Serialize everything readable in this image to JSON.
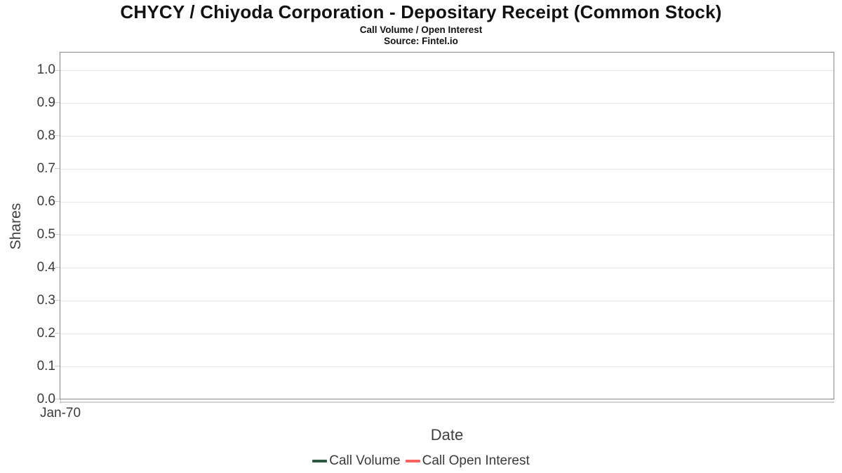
{
  "chart_data": {
    "type": "line",
    "title": "CHYCY / Chiyoda Corporation - Depositary Receipt (Common Stock)",
    "subtitle": "Call Volume / Open Interest",
    "source": "Source: Fintel.io",
    "xlabel": "Date",
    "ylabel": "Shares",
    "x_tick_labels": [
      "Jan-70"
    ],
    "y_ticks": [
      1.0,
      0.9,
      0.8,
      0.7,
      0.6,
      0.5,
      0.4,
      0.3,
      0.2,
      0.1,
      0.0
    ],
    "y_tick_labels": [
      "1.0",
      "0.9",
      "0.8",
      "0.7",
      "0.6",
      "0.5",
      "0.4",
      "0.3",
      "0.2",
      "0.1",
      "0.0"
    ],
    "ylim": [
      0.0,
      1.05
    ],
    "grid": "horizontal gridlines on, plot area otherwise empty (no data points plotted)",
    "legend_position": "bottom-center",
    "series": [
      {
        "name": "Call Volume",
        "color": "#2e5a40",
        "x": [],
        "values": []
      },
      {
        "name": "Call Open Interest",
        "color": "#f9645f",
        "x": [],
        "values": []
      }
    ],
    "colors": {
      "plot_border": "#878787",
      "gridline": "#e6e6e6",
      "x_axis_line": "#d2d2d2",
      "tick_label": "#3b3b3b",
      "title_text": "#111111"
    }
  }
}
